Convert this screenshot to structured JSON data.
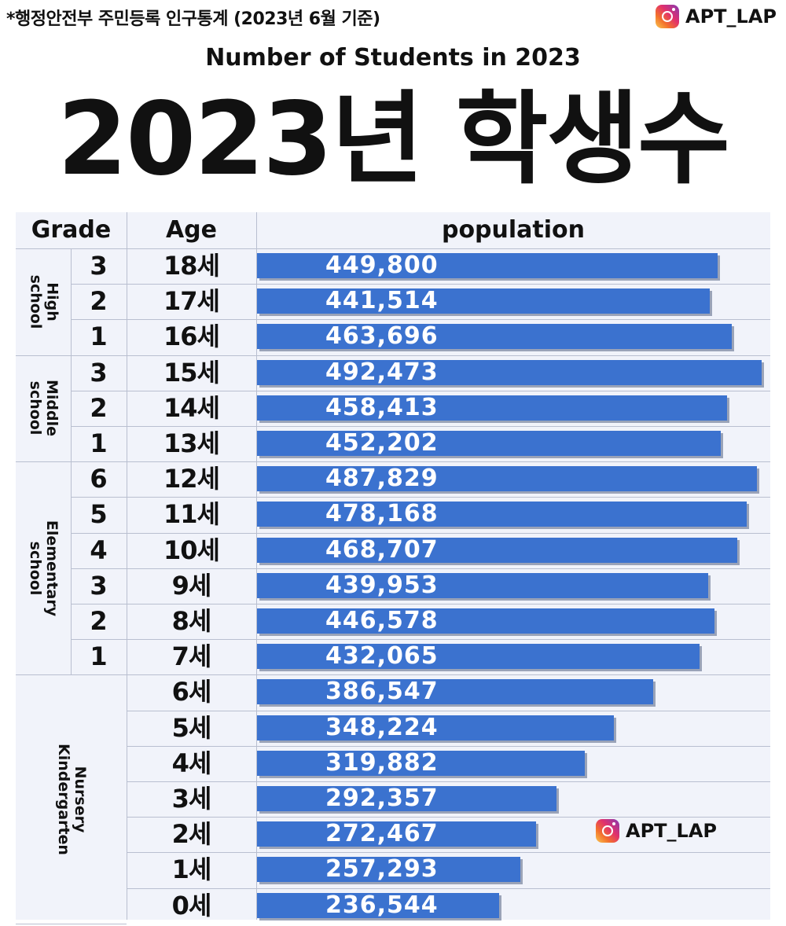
{
  "source_note": "*행정안전부 주민등록 인구통계 (2023년 6월 기준)",
  "brand": "APT_LAP",
  "watermark": "APT_LAP",
  "subtitle": "Number of Students in 2023",
  "title": "2023년 학생수",
  "colors": {
    "bar": "#3b72cf",
    "grid": "#b9bfd0",
    "background": "#f1f3fa"
  },
  "icons": {
    "brand": "instagram-icon"
  },
  "chart_data": {
    "type": "bar",
    "orientation": "horizontal",
    "headers": {
      "grade": "Grade",
      "age": "Age",
      "population": "population"
    },
    "groups": [
      {
        "label": "High\nschool",
        "rows": [
          0,
          2
        ]
      },
      {
        "label": "Middle\nschool",
        "rows": [
          3,
          5
        ]
      },
      {
        "label": "Elementary\nschool",
        "rows": [
          6,
          11
        ]
      },
      {
        "label": "Nursery\nKindergarten",
        "rows": [
          12,
          18
        ]
      }
    ],
    "grades": [
      "3",
      "2",
      "1",
      "3",
      "2",
      "1",
      "6",
      "5",
      "4",
      "3",
      "2",
      "1",
      "",
      "",
      "",
      "",
      "",
      "",
      ""
    ],
    "categories": [
      "18세",
      "17세",
      "16세",
      "15세",
      "14세",
      "13세",
      "12세",
      "11세",
      "10세",
      "9세",
      "8세",
      "7세",
      "6세",
      "5세",
      "4세",
      "3세",
      "2세",
      "1세",
      "0세"
    ],
    "values": [
      449800,
      441514,
      463696,
      492473,
      458413,
      452202,
      487829,
      478168,
      468707,
      439953,
      446578,
      432065,
      386547,
      348224,
      319882,
      292357,
      272467,
      257293,
      236544
    ],
    "value_labels": [
      "449,800",
      "441,514",
      "463,696",
      "492,473",
      "458,413",
      "452,202",
      "487,829",
      "478,168",
      "468,707",
      "439,953",
      "446,578",
      "432,065",
      "386,547",
      "348,224",
      "319,882",
      "292,357",
      "272,467",
      "257,293",
      "236,544"
    ],
    "xlim": [
      0,
      492473
    ],
    "grid": true,
    "legend": "none"
  }
}
